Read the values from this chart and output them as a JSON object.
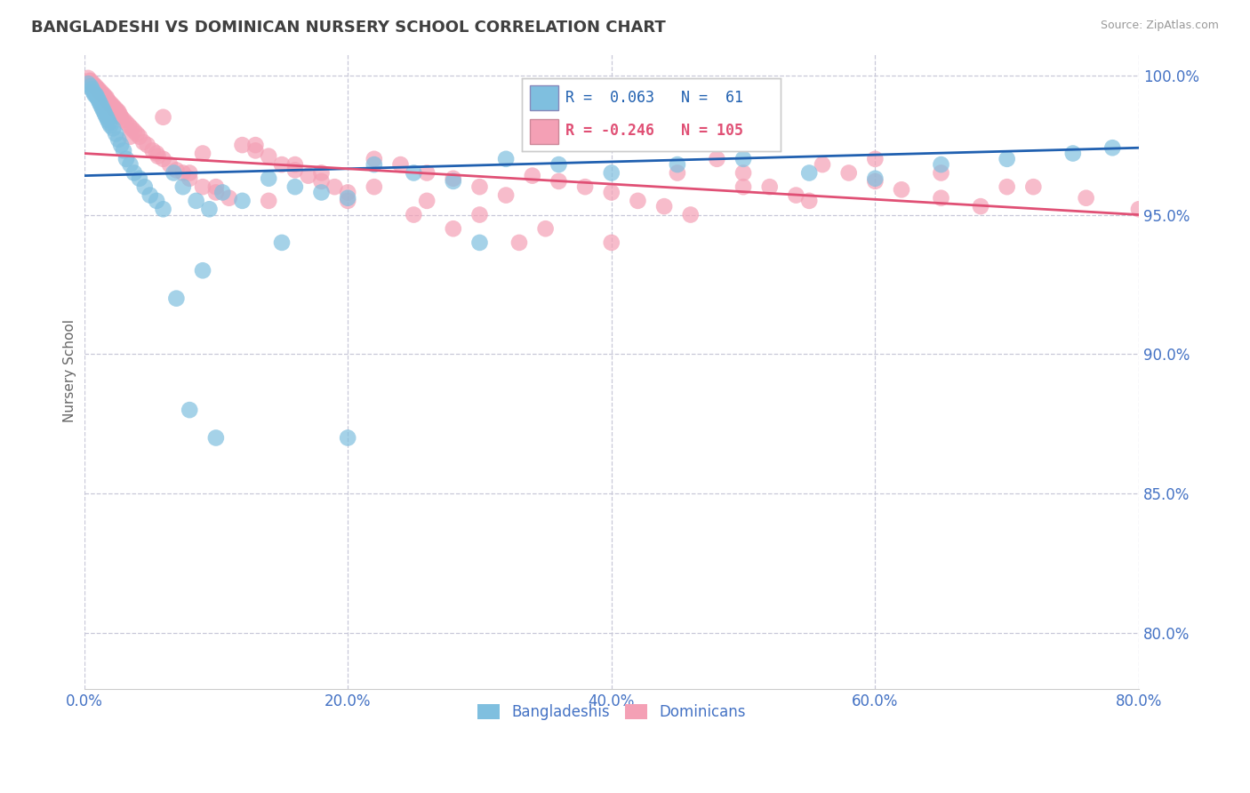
{
  "title": "BANGLADESHI VS DOMINICAN NURSERY SCHOOL CORRELATION CHART",
  "source": "Source: ZipAtlas.com",
  "ylabel": "Nursery School",
  "legend_label_1": "Bangladeshis",
  "legend_label_2": "Dominicans",
  "r1": 0.063,
  "n1": 61,
  "r2": -0.246,
  "n2": 105,
  "color_blue": "#7fbfdf",
  "color_pink": "#f4a0b5",
  "color_blue_line": "#2060b0",
  "color_pink_line": "#e05075",
  "color_title": "#404040",
  "color_blue_text": "#2060b0",
  "color_pink_text": "#e05075",
  "color_axis": "#4472c4",
  "color_source": "#999999",
  "xmin": 0.0,
  "xmax": 0.8,
  "ymin": 0.78,
  "ymax": 1.008,
  "yticks": [
    0.8,
    0.85,
    0.9,
    0.95,
    1.0
  ],
  "ytick_labels": [
    "80.0%",
    "85.0%",
    "90.0%",
    "95.0%",
    "100.0%"
  ],
  "xticks": [
    0.0,
    0.2,
    0.4,
    0.6,
    0.8
  ],
  "xtick_labels": [
    "0.0%",
    "20.0%",
    "40.0%",
    "60.0%",
    "80.0%"
  ],
  "blue_line_x0": 0.0,
  "blue_line_y0": 0.964,
  "blue_line_x1": 0.8,
  "blue_line_y1": 0.974,
  "pink_line_x0": 0.0,
  "pink_line_y0": 0.972,
  "pink_line_x1": 0.8,
  "pink_line_y1": 0.95,
  "blue_x": [
    0.003,
    0.005,
    0.006,
    0.007,
    0.008,
    0.009,
    0.01,
    0.011,
    0.012,
    0.013,
    0.014,
    0.015,
    0.016,
    0.017,
    0.018,
    0.019,
    0.02,
    0.022,
    0.024,
    0.026,
    0.028,
    0.03,
    0.032,
    0.035,
    0.038,
    0.042,
    0.046,
    0.05,
    0.055,
    0.06,
    0.068,
    0.075,
    0.085,
    0.095,
    0.105,
    0.12,
    0.14,
    0.16,
    0.18,
    0.2,
    0.22,
    0.25,
    0.28,
    0.32,
    0.36,
    0.4,
    0.45,
    0.5,
    0.55,
    0.6,
    0.65,
    0.7,
    0.75,
    0.78,
    0.15,
    0.09,
    0.07,
    0.3,
    0.2,
    0.1,
    0.08
  ],
  "blue_y": [
    0.997,
    0.996,
    0.995,
    0.994,
    0.993,
    0.993,
    0.992,
    0.991,
    0.99,
    0.989,
    0.988,
    0.987,
    0.986,
    0.985,
    0.984,
    0.983,
    0.982,
    0.981,
    0.979,
    0.977,
    0.975,
    0.973,
    0.97,
    0.968,
    0.965,
    0.963,
    0.96,
    0.957,
    0.955,
    0.952,
    0.965,
    0.96,
    0.955,
    0.952,
    0.958,
    0.955,
    0.963,
    0.96,
    0.958,
    0.956,
    0.968,
    0.965,
    0.962,
    0.97,
    0.968,
    0.965,
    0.968,
    0.97,
    0.965,
    0.963,
    0.968,
    0.97,
    0.972,
    0.974,
    0.94,
    0.93,
    0.92,
    0.94,
    0.87,
    0.87,
    0.88
  ],
  "pink_x": [
    0.003,
    0.004,
    0.005,
    0.006,
    0.007,
    0.008,
    0.009,
    0.01,
    0.011,
    0.012,
    0.013,
    0.014,
    0.015,
    0.016,
    0.017,
    0.018,
    0.019,
    0.02,
    0.021,
    0.022,
    0.023,
    0.024,
    0.025,
    0.026,
    0.027,
    0.028,
    0.03,
    0.032,
    0.034,
    0.036,
    0.038,
    0.04,
    0.042,
    0.045,
    0.048,
    0.052,
    0.056,
    0.06,
    0.065,
    0.07,
    0.075,
    0.08,
    0.09,
    0.1,
    0.11,
    0.12,
    0.13,
    0.14,
    0.15,
    0.16,
    0.17,
    0.18,
    0.19,
    0.2,
    0.22,
    0.24,
    0.26,
    0.28,
    0.3,
    0.32,
    0.34,
    0.36,
    0.38,
    0.4,
    0.42,
    0.44,
    0.46,
    0.48,
    0.5,
    0.52,
    0.54,
    0.56,
    0.58,
    0.6,
    0.62,
    0.65,
    0.68,
    0.72,
    0.76,
    0.8,
    0.035,
    0.055,
    0.08,
    0.1,
    0.14,
    0.18,
    0.22,
    0.26,
    0.3,
    0.35,
    0.4,
    0.45,
    0.5,
    0.55,
    0.6,
    0.65,
    0.7,
    0.13,
    0.09,
    0.16,
    0.2,
    0.25,
    0.06,
    0.28,
    0.33
  ],
  "pink_y": [
    0.999,
    0.998,
    0.998,
    0.997,
    0.997,
    0.996,
    0.996,
    0.995,
    0.995,
    0.994,
    0.994,
    0.993,
    0.993,
    0.992,
    0.992,
    0.991,
    0.99,
    0.99,
    0.989,
    0.989,
    0.988,
    0.988,
    0.987,
    0.987,
    0.986,
    0.985,
    0.984,
    0.983,
    0.982,
    0.981,
    0.98,
    0.979,
    0.978,
    0.976,
    0.975,
    0.973,
    0.971,
    0.97,
    0.968,
    0.966,
    0.965,
    0.963,
    0.96,
    0.958,
    0.956,
    0.975,
    0.973,
    0.971,
    0.968,
    0.966,
    0.964,
    0.962,
    0.96,
    0.958,
    0.97,
    0.968,
    0.965,
    0.963,
    0.96,
    0.957,
    0.964,
    0.962,
    0.96,
    0.958,
    0.955,
    0.953,
    0.95,
    0.97,
    0.965,
    0.96,
    0.957,
    0.968,
    0.965,
    0.962,
    0.959,
    0.956,
    0.953,
    0.96,
    0.956,
    0.952,
    0.978,
    0.972,
    0.965,
    0.96,
    0.955,
    0.965,
    0.96,
    0.955,
    0.95,
    0.945,
    0.94,
    0.965,
    0.96,
    0.955,
    0.97,
    0.965,
    0.96,
    0.975,
    0.972,
    0.968,
    0.955,
    0.95,
    0.985,
    0.945,
    0.94
  ]
}
